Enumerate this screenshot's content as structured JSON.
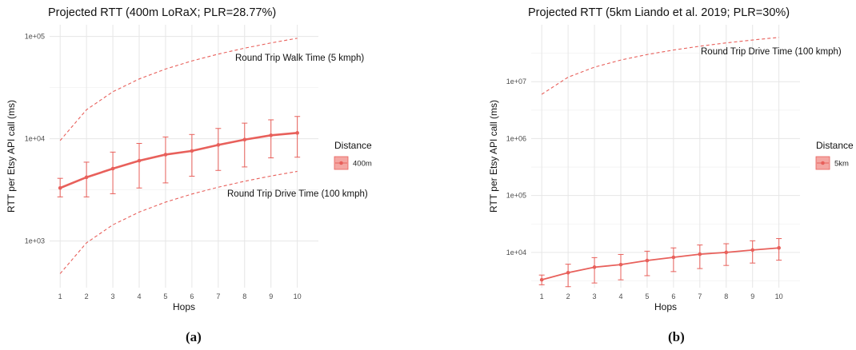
{
  "figure": {
    "caption_a": "(a)",
    "caption_b": "(b)"
  },
  "colors": {
    "series": "#e8605b",
    "legend_fill": "#f4a7a3"
  },
  "chart_data": [
    {
      "type": "line",
      "title": "Projected RTT (400m LoRaX; PLR=28.77%)",
      "xlabel": "Hops",
      "ylabel": "RTT per Etsy API call (ms)",
      "y_scale": "log",
      "ylim": [
        350,
        130000
      ],
      "xlim": [
        0.6,
        10.8
      ],
      "x": [
        1,
        2,
        3,
        4,
        5,
        6,
        7,
        8,
        9,
        10
      ],
      "x_tick_labels": [
        "1",
        "2",
        "3",
        "4",
        "5",
        "6",
        "7",
        "8",
        "9",
        "10"
      ],
      "y_ticks": [
        1000,
        10000,
        100000
      ],
      "y_tick_labels": [
        "1e+03",
        "1e+04",
        "1e+05"
      ],
      "legend": {
        "title": "Distance",
        "position": "right",
        "entries": [
          "400m"
        ]
      },
      "series": [
        {
          "name": "400m",
          "values": [
            3300,
            4200,
            5100,
            6100,
            7000,
            7600,
            8700,
            9800,
            10800,
            11400
          ],
          "err_low": [
            2700,
            2700,
            2900,
            3300,
            3700,
            4300,
            4900,
            5300,
            6500,
            6600
          ],
          "err_high": [
            4100,
            5900,
            7400,
            9000,
            10400,
            11000,
            12600,
            14200,
            15300,
            16500
          ]
        }
      ],
      "reference_lines": [
        {
          "label": "Round Trip Walk Time (5 kmph)",
          "values": [
            9600,
            19200,
            28800,
            38400,
            48000,
            57600,
            67200,
            76800,
            86400,
            96000
          ]
        },
        {
          "label": "Round Trip Drive Time (100 kmph)",
          "values": [
            480,
            960,
            1440,
            1920,
            2400,
            2880,
            3360,
            3840,
            4320,
            4800
          ]
        }
      ],
      "grid": true
    },
    {
      "type": "line",
      "title": "Projected RTT (5km Liando et al. 2019; PLR=30%)",
      "xlabel": "Hops",
      "ylabel": "RTT per Etsy API call (ms)",
      "y_scale": "log",
      "ylim": [
        2400,
        100000000
      ],
      "xlim": [
        0.6,
        10.8
      ],
      "x": [
        1,
        2,
        3,
        4,
        5,
        6,
        7,
        8,
        9,
        10
      ],
      "x_tick_labels": [
        "1",
        "2",
        "3",
        "4",
        "5",
        "6",
        "7",
        "8",
        "9",
        "10"
      ],
      "y_ticks": [
        10000,
        100000,
        1000000,
        10000000
      ],
      "y_tick_labels": [
        "1e+04",
        "1e+05",
        "1e+06",
        "1e+07"
      ],
      "legend": {
        "title": "Distance",
        "position": "right",
        "entries": [
          "5km"
        ]
      },
      "series": [
        {
          "name": "5km",
          "values": [
            3300,
            4400,
            5500,
            6100,
            7200,
            8200,
            9300,
            10000,
            11000,
            12000
          ],
          "err_low": [
            2700,
            2500,
            2900,
            3300,
            3900,
            4600,
            5200,
            5900,
            6500,
            7300
          ],
          "err_high": [
            4000,
            6200,
            8100,
            9200,
            10500,
            12000,
            13500,
            14200,
            16000,
            17500
          ]
        }
      ],
      "reference_lines": [
        {
          "label": "Round Trip Drive Time (100 kmph)",
          "values": [
            6000000,
            12000000,
            18000000,
            24000000,
            30000000,
            36000000,
            42000000,
            48000000,
            54000000,
            60000000
          ]
        }
      ],
      "grid": true
    }
  ]
}
